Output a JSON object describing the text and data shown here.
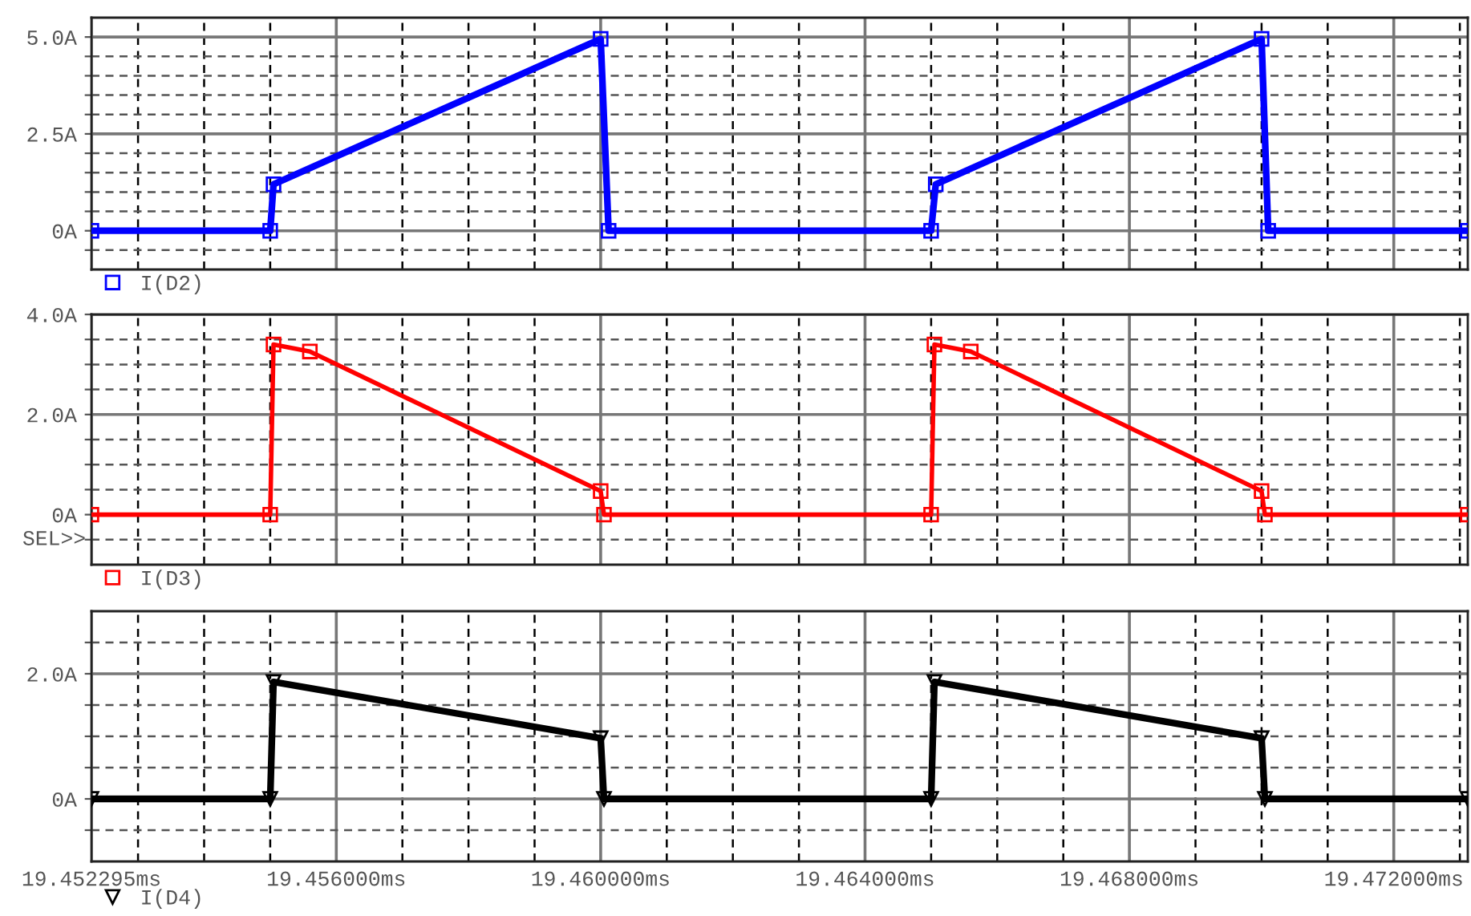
{
  "chart_data": [
    {
      "type": "line",
      "legend": "bottom left",
      "grid": true,
      "marker": "square",
      "tick_labels": "y",
      "x": [
        19.452295,
        19.455,
        19.45505,
        19.46,
        19.46012,
        19.465,
        19.46507,
        19.47,
        19.4701,
        19.47312
      ],
      "series": [
        {
          "name": "I(D2)",
          "color": "#0000ff",
          "values": [
            0,
            0,
            1.2,
            4.95,
            0,
            0,
            1.2,
            4.95,
            0,
            0
          ]
        }
      ],
      "xlim": [
        19.452295,
        19.47312
      ],
      "ylim": [
        -1.0,
        5.5
      ],
      "yticks": [
        {
          "value": -0.5,
          "label": null
        },
        {
          "value": 0,
          "label": "0A"
        },
        {
          "value": 0.5,
          "label": null
        },
        {
          "value": 1.0,
          "label": null
        },
        {
          "value": 1.5,
          "label": null
        },
        {
          "value": 2.0,
          "label": null
        },
        {
          "value": 2.5,
          "label": "2.5A"
        },
        {
          "value": 3.0,
          "label": null
        },
        {
          "value": 3.5,
          "label": null
        },
        {
          "value": 4.0,
          "label": null
        },
        {
          "value": 4.5,
          "label": null
        },
        {
          "value": 5.0,
          "label": "5.0A"
        }
      ]
    },
    {
      "type": "line",
      "legend": "bottom left",
      "grid": true,
      "marker": "square",
      "tick_labels": "y",
      "x": [
        19.452295,
        19.455,
        19.45505,
        19.4556,
        19.46,
        19.46005,
        19.465,
        19.46505,
        19.4656,
        19.47,
        19.47005,
        19.47312
      ],
      "series": [
        {
          "name": "I(D3)",
          "color": "#ff0000",
          "values": [
            0,
            0,
            3.4,
            3.26,
            0.47,
            0,
            0,
            3.4,
            3.26,
            0.47,
            0,
            0
          ]
        }
      ],
      "annotations": [
        "SEL>>"
      ],
      "xlim": [
        19.452295,
        19.47312
      ],
      "ylim": [
        -1.0,
        4.0
      ],
      "yticks": [
        {
          "value": -0.5,
          "label": null
        },
        {
          "value": 0,
          "label": "0A"
        },
        {
          "value": 0.5,
          "label": null
        },
        {
          "value": 1.0,
          "label": null
        },
        {
          "value": 1.5,
          "label": null
        },
        {
          "value": 2.0,
          "label": "2.0A"
        },
        {
          "value": 2.5,
          "label": null
        },
        {
          "value": 3.0,
          "label": null
        },
        {
          "value": 3.5,
          "label": null
        },
        {
          "value": 4.0,
          "label": "4.0A"
        }
      ]
    },
    {
      "type": "line",
      "legend": "bottom left",
      "grid": true,
      "marker": "triangle",
      "x": [
        19.452295,
        19.455,
        19.45505,
        19.46,
        19.46005,
        19.465,
        19.46505,
        19.47,
        19.47005,
        19.47312
      ],
      "series": [
        {
          "name": "I(D4)",
          "color": "#000000",
          "values": [
            0,
            0,
            1.87,
            0.97,
            0,
            0,
            1.87,
            0.97,
            0,
            0
          ]
        }
      ],
      "xlim": [
        19.452295,
        19.47312
      ],
      "ylim": [
        -1.0,
        3.0
      ],
      "xticks": [
        {
          "value": 19.452295,
          "label": "19.452295ms"
        },
        {
          "value": 19.453,
          "label": null
        },
        {
          "value": 19.454,
          "label": null
        },
        {
          "value": 19.455,
          "label": null
        },
        {
          "value": 19.456,
          "label": "19.456000ms"
        },
        {
          "value": 19.457,
          "label": null
        },
        {
          "value": 19.458,
          "label": null
        },
        {
          "value": 19.459,
          "label": null
        },
        {
          "value": 19.46,
          "label": "19.460000ms"
        },
        {
          "value": 19.461,
          "label": null
        },
        {
          "value": 19.462,
          "label": null
        },
        {
          "value": 19.463,
          "label": null
        },
        {
          "value": 19.464,
          "label": "19.464000ms"
        },
        {
          "value": 19.465,
          "label": null
        },
        {
          "value": 19.466,
          "label": null
        },
        {
          "value": 19.467,
          "label": null
        },
        {
          "value": 19.468,
          "label": "19.468000ms"
        },
        {
          "value": 19.469,
          "label": null
        },
        {
          "value": 19.47,
          "label": null
        },
        {
          "value": 19.471,
          "label": null
        },
        {
          "value": 19.472,
          "label": "19.472000ms"
        },
        {
          "value": 19.473,
          "label": null
        }
      ],
      "yticks": [
        {
          "value": -0.5,
          "label": null
        },
        {
          "value": 0,
          "label": "0A"
        },
        {
          "value": 0.5,
          "label": null
        },
        {
          "value": 1.0,
          "label": null
        },
        {
          "value": 1.5,
          "label": null
        },
        {
          "value": 2.0,
          "label": "2.0A"
        },
        {
          "value": 2.5,
          "label": null
        }
      ]
    }
  ]
}
